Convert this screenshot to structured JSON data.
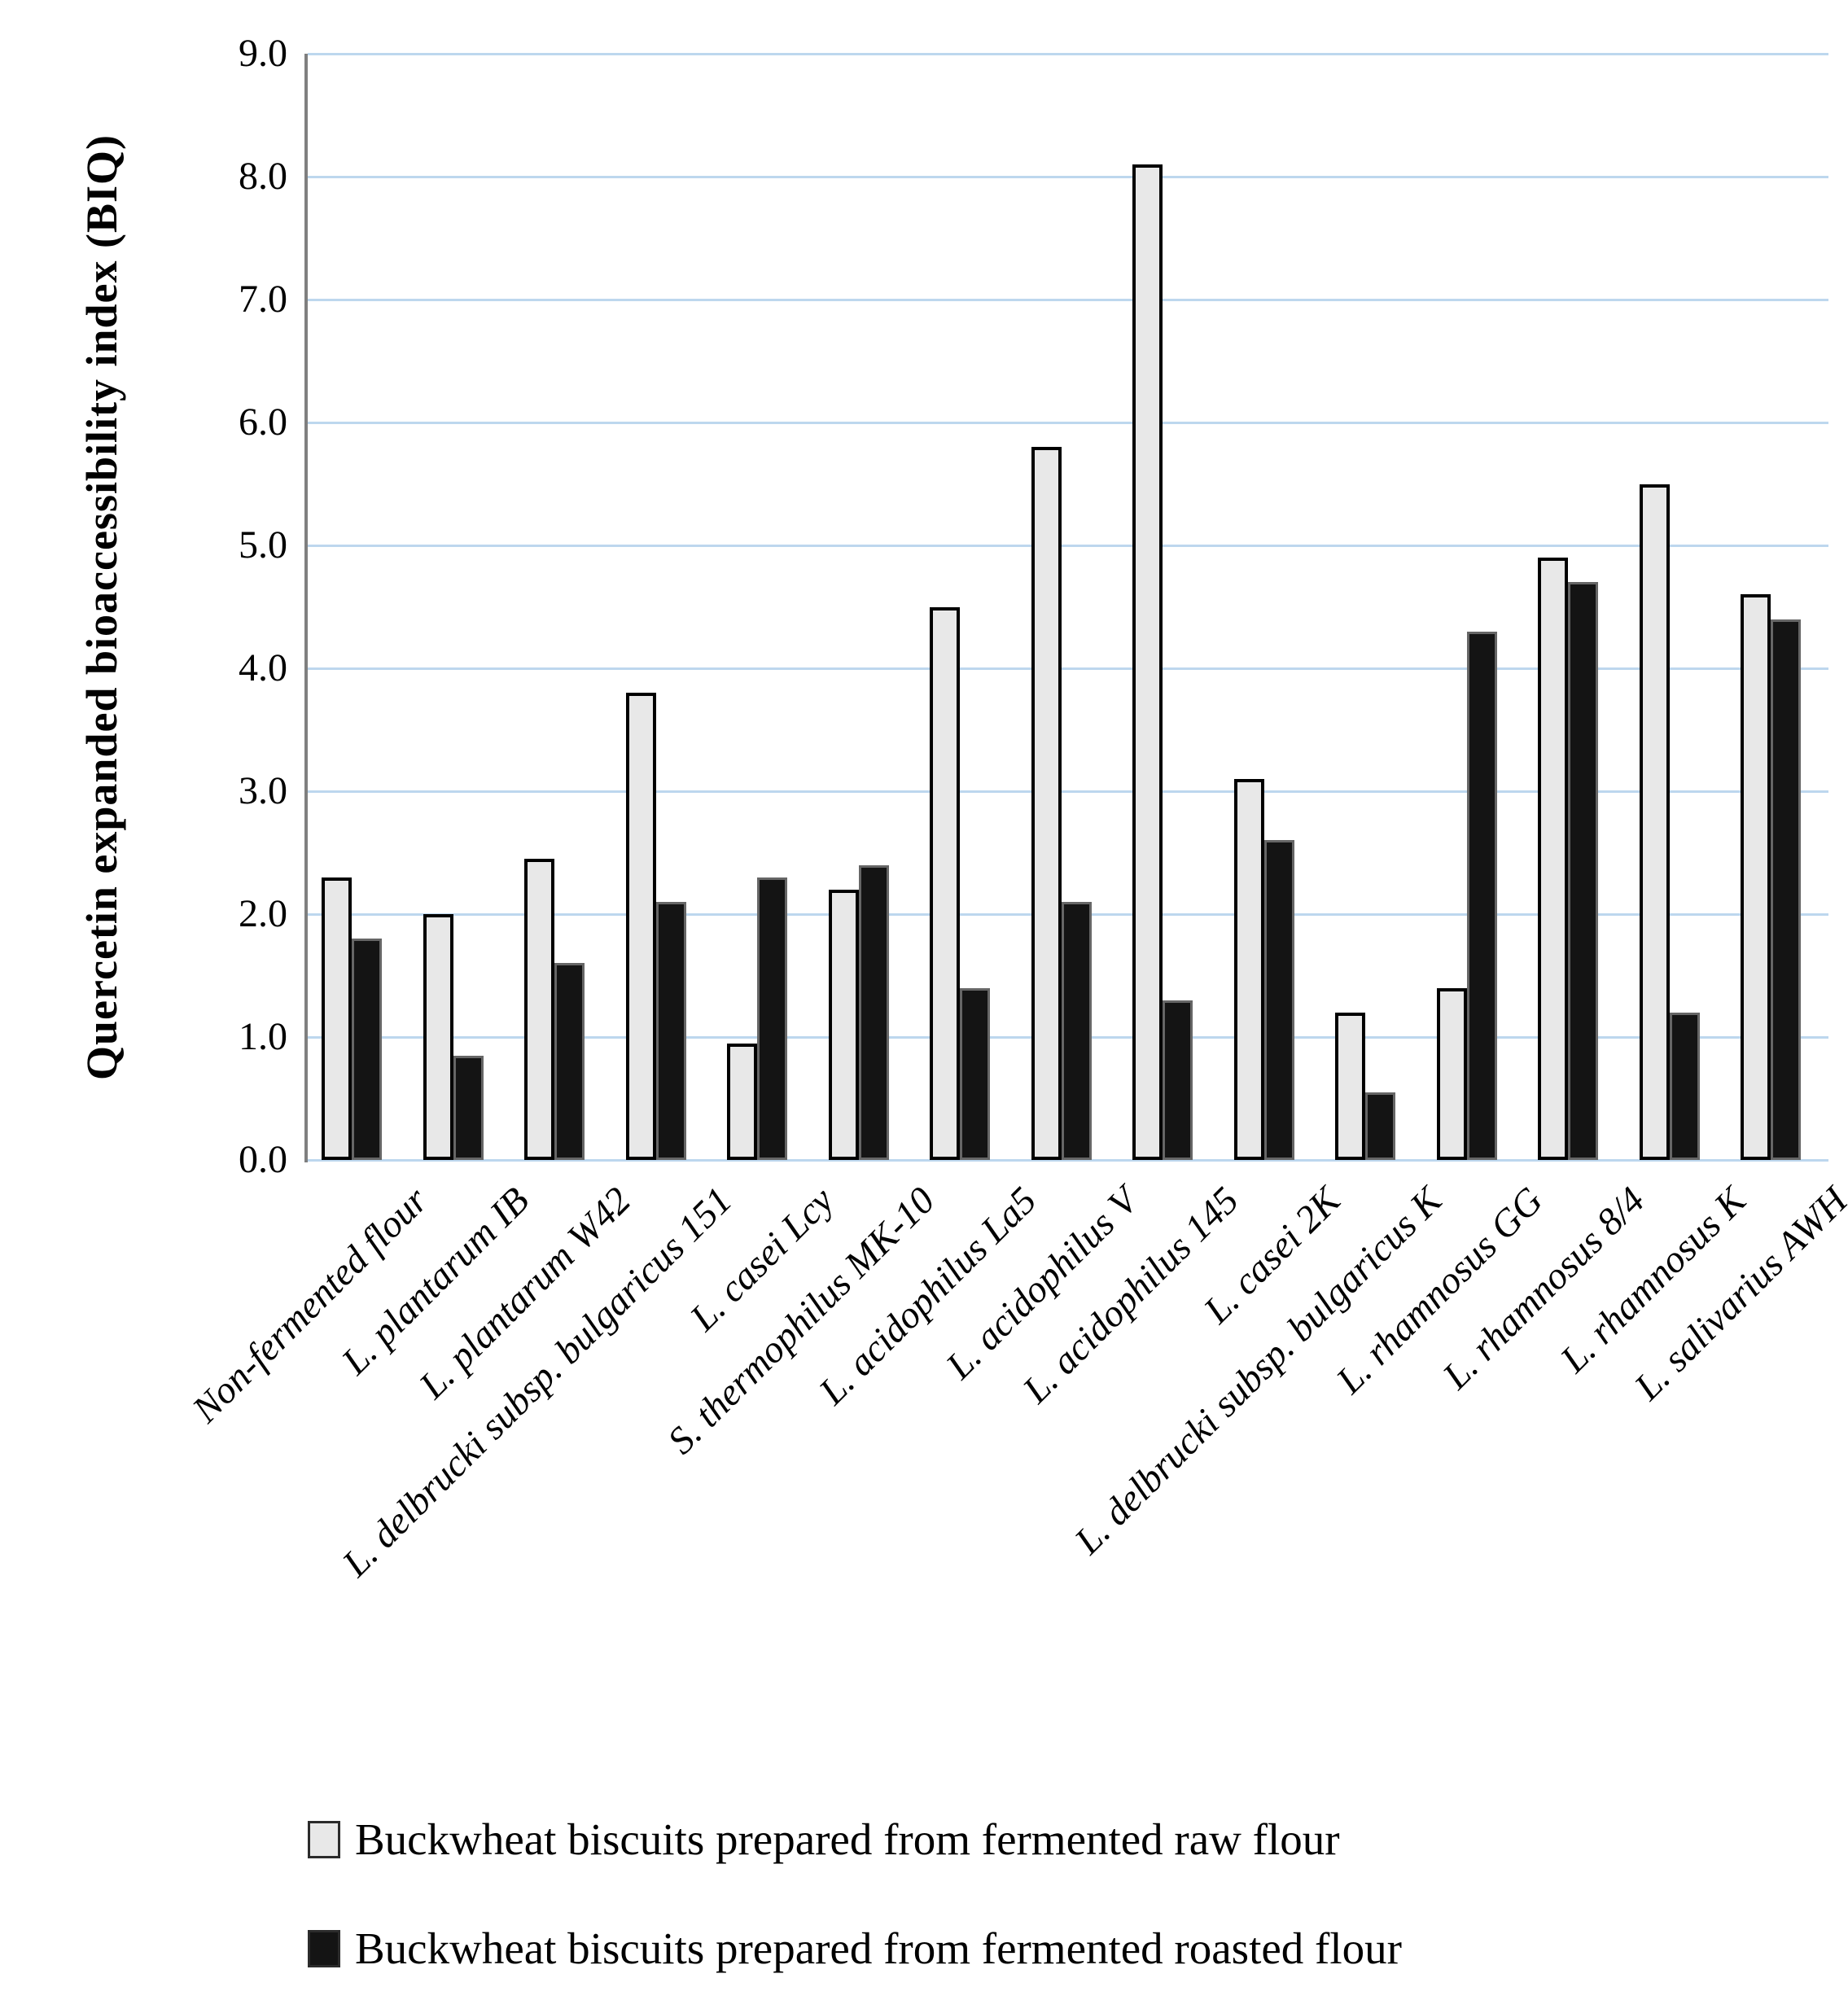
{
  "chart_data": {
    "type": "bar",
    "title": "",
    "xlabel": "",
    "ylabel": "Quercetin expanded bioaccessibility index (BIQ)",
    "ylim": [
      0,
      9
    ],
    "ytick_step": 1.0,
    "ytick_decimals": 1,
    "grid": "horizontal",
    "legend_position": "bottom-left",
    "categories": [
      "Non-fermented flour",
      "L. plantarum IB",
      "L. plantarum W42",
      "L. delbrucki subsp. bulgaricus 151",
      "L. casei Lcy",
      "S. thermophilus MK-10",
      "L. acidophilus La5",
      "L. acidophilus V",
      "L. acidophilus 145",
      "L. casei 2K",
      "L. delbrucki subsp. bulgaricus K",
      "L. rhamnosus GG",
      "L. rhamnosus 8/4",
      "L. rhamnosus K",
      "L. salivarius AWH"
    ],
    "series": [
      {
        "name": "Buckwheat biscuits prepared from fermented raw flour",
        "color": "#e8e8e8",
        "values": [
          2.3,
          2.0,
          2.45,
          3.8,
          0.95,
          2.2,
          4.5,
          5.8,
          8.1,
          3.1,
          1.2,
          1.4,
          4.9,
          5.5,
          4.6
        ]
      },
      {
        "name": "Buckwheat biscuits prepared from fermented roasted flour",
        "color": "#141414",
        "values": [
          1.8,
          0.85,
          1.6,
          2.1,
          2.3,
          2.4,
          1.4,
          2.1,
          1.3,
          2.6,
          0.55,
          4.3,
          4.7,
          1.2,
          4.4
        ]
      }
    ]
  },
  "colors": {
    "background": "#ffffff",
    "gridline": "#bdd7ee",
    "axis_line": "#7f7f7f",
    "raw_bar_border": "#000000",
    "roasted_bar_border": "#666666"
  }
}
